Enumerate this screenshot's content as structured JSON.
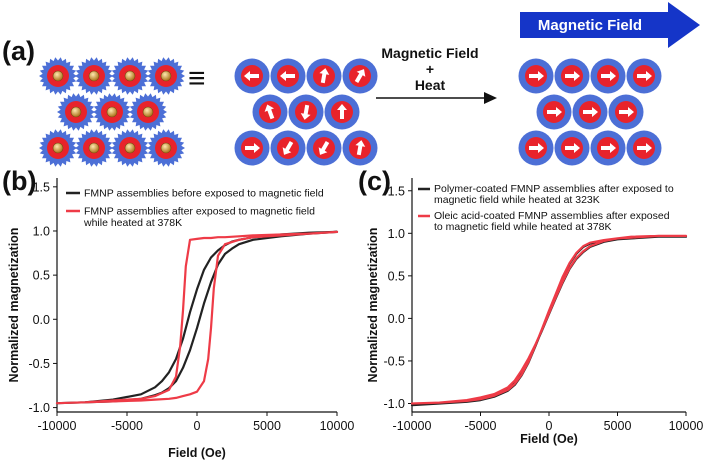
{
  "panel_a": {
    "label": "(a)",
    "equiv_symbol": "≡",
    "process_line1": "Magnetic Field",
    "process_line2": "+",
    "process_line3": "Heat",
    "banner_label": "Magnetic Field",
    "colors": {
      "particle_blue": "#4c6fd6",
      "particle_red": "#e8232b",
      "banner_blue": "#1535c8",
      "core_orange": "#d4a24a"
    },
    "grid_rows": [
      4,
      3,
      4
    ],
    "initial_arrow_angles_deg": [
      [
        180,
        180,
        -80,
        -60
      ],
      [
        -110,
        100,
        -90
      ],
      [
        0,
        120,
        120,
        -80
      ]
    ],
    "final_arrow_angles_deg": [
      [
        0,
        0,
        0,
        0
      ],
      [
        0,
        0,
        0
      ],
      [
        0,
        0,
        0,
        0
      ]
    ]
  },
  "chart_data": [
    {
      "panel_label": "(b)",
      "type": "line",
      "xlabel": "Field (Oe)",
      "ylabel": "Normalized magnetization",
      "xlim": [
        -10000,
        10000
      ],
      "ylim": [
        -1.05,
        1.6
      ],
      "xticks": [
        "-10000",
        "-5000",
        "0",
        "5000",
        "10000"
      ],
      "yticks": [
        "-1.0",
        "-0.5",
        "0.0",
        "0.5",
        "1.0",
        "1.5"
      ],
      "legend_position": "top-left",
      "series": [
        {
          "name": "FMNP assemblies before exposed to magnetic field",
          "legend_lines": [
            "FMNP assemblies before exposed to magnetic field"
          ],
          "color": "#222222",
          "x": [
            -10000,
            -8000,
            -6000,
            -4000,
            -3000,
            -2500,
            -2000,
            -1500,
            -1000,
            -500,
            0,
            500,
            1000,
            1500,
            2000,
            2500,
            3000,
            4000,
            6000,
            8000,
            10000,
            8000,
            6000,
            4000,
            3000,
            2500,
            2000,
            1500,
            1000,
            500,
            0,
            -500,
            -1000,
            -1500,
            -2000,
            -2500,
            -3000,
            -4000,
            -6000,
            -8000,
            -10000
          ],
          "y": [
            -0.95,
            -0.94,
            -0.93,
            -0.9,
            -0.86,
            -0.83,
            -0.78,
            -0.7,
            -0.55,
            -0.35,
            -0.1,
            0.18,
            0.42,
            0.62,
            0.74,
            0.8,
            0.85,
            0.9,
            0.94,
            0.97,
            0.99,
            0.98,
            0.96,
            0.93,
            0.9,
            0.88,
            0.84,
            0.78,
            0.7,
            0.56,
            0.34,
            0.08,
            -0.22,
            -0.45,
            -0.6,
            -0.7,
            -0.77,
            -0.85,
            -0.91,
            -0.94,
            -0.95
          ]
        },
        {
          "name": "FMNP assemblies after exposed to magnetic field while heated at 378K",
          "legend_lines": [
            "FMNP assemblies after exposed to magnetic field",
            "while heated at 378K"
          ],
          "color": "#ee3b47",
          "x": [
            -10000,
            -8000,
            -6000,
            -4000,
            -3000,
            -2000,
            -1500,
            -1000,
            -500,
            0,
            500,
            800,
            1000,
            1200,
            1500,
            2000,
            3000,
            4000,
            6000,
            8000,
            10000,
            8000,
            6000,
            4000,
            3000,
            2000,
            1500,
            1000,
            500,
            0,
            -500,
            -800,
            -1000,
            -1200,
            -1500,
            -2000,
            -3000,
            -4000,
            -6000,
            -8000,
            -10000
          ],
          "y": [
            -0.95,
            -0.94,
            -0.93,
            -0.92,
            -0.91,
            -0.9,
            -0.89,
            -0.87,
            -0.85,
            -0.82,
            -0.7,
            -0.45,
            -0.1,
            0.35,
            0.72,
            0.85,
            0.9,
            0.93,
            0.95,
            0.97,
            0.99,
            0.97,
            0.96,
            0.95,
            0.94,
            0.93,
            0.93,
            0.92,
            0.92,
            0.91,
            0.9,
            0.6,
            0.1,
            -0.3,
            -0.65,
            -0.8,
            -0.87,
            -0.9,
            -0.92,
            -0.94,
            -0.95
          ]
        }
      ]
    },
    {
      "panel_label": "(c)",
      "type": "line",
      "xlabel": "Field (Oe)",
      "ylabel": "Normalized magnetization",
      "xlim": [
        -10000,
        10000
      ],
      "ylim": [
        -1.1,
        1.65
      ],
      "xticks": [
        "-10000",
        "-5000",
        "0",
        "5000",
        "10000"
      ],
      "yticks": [
        "-1.0",
        "-0.5",
        "0.0",
        "0.5",
        "1.0",
        "1.5"
      ],
      "legend_position": "top-left",
      "series": [
        {
          "name": "Polymer-coated FMNP assemblies after exposed to magnetic field while heated at 323K",
          "legend_lines": [
            "Polymer-coated FMNP assemblies after exposed to",
            "magnetic field while heated at 323K"
          ],
          "color": "#222222",
          "x": [
            -10000,
            -8000,
            -6000,
            -5000,
            -4000,
            -3000,
            -2500,
            -2000,
            -1500,
            -1000,
            -500,
            0,
            500,
            1000,
            1500,
            2000,
            2500,
            3000,
            4000,
            5000,
            6000,
            8000,
            10000,
            8000,
            6000,
            5000,
            4000,
            3000,
            2500,
            2000,
            1500,
            1000,
            500,
            0,
            -500,
            -1000,
            -1500,
            -2000,
            -2500,
            -3000,
            -4000,
            -5000,
            -6000,
            -8000,
            -10000
          ],
          "y": [
            -1.02,
            -1.0,
            -0.97,
            -0.94,
            -0.9,
            -0.82,
            -0.74,
            -0.62,
            -0.48,
            -0.32,
            -0.14,
            0.05,
            0.24,
            0.42,
            0.58,
            0.7,
            0.78,
            0.84,
            0.9,
            0.93,
            0.95,
            0.96,
            0.96,
            0.96,
            0.94,
            0.93,
            0.91,
            0.88,
            0.84,
            0.76,
            0.64,
            0.48,
            0.28,
            0.08,
            -0.13,
            -0.33,
            -0.52,
            -0.67,
            -0.78,
            -0.85,
            -0.92,
            -0.96,
            -0.98,
            -1.0,
            -1.02
          ]
        },
        {
          "name": "Oleic acid-coated FMNP assemblies after exposed to magnetic field while heated at 378K",
          "legend_lines": [
            "Oleic acid-coated FMNP assemblies after exposed",
            "to magnetic field while heated at 378K"
          ],
          "color": "#ee3b47",
          "x": [
            -10000,
            -8000,
            -6000,
            -5000,
            -4000,
            -3000,
            -2500,
            -2000,
            -1500,
            -1000,
            -500,
            0,
            500,
            1000,
            1500,
            2000,
            2500,
            3000,
            4000,
            5000,
            6000,
            8000,
            10000,
            8000,
            6000,
            5000,
            4000,
            3000,
            2500,
            2000,
            1500,
            1000,
            500,
            0,
            -500,
            -1000,
            -1500,
            -2000,
            -2500,
            -3000,
            -4000,
            -5000,
            -6000,
            -8000,
            -10000
          ],
          "y": [
            -1.0,
            -0.99,
            -0.96,
            -0.93,
            -0.89,
            -0.81,
            -0.73,
            -0.61,
            -0.47,
            -0.31,
            -0.13,
            0.06,
            0.25,
            0.43,
            0.59,
            0.71,
            0.79,
            0.85,
            0.91,
            0.94,
            0.96,
            0.97,
            0.97,
            0.97,
            0.95,
            0.94,
            0.92,
            0.89,
            0.85,
            0.77,
            0.65,
            0.49,
            0.29,
            0.09,
            -0.12,
            -0.32,
            -0.51,
            -0.66,
            -0.77,
            -0.84,
            -0.91,
            -0.95,
            -0.97,
            -0.99,
            -1.0
          ]
        }
      ]
    }
  ]
}
